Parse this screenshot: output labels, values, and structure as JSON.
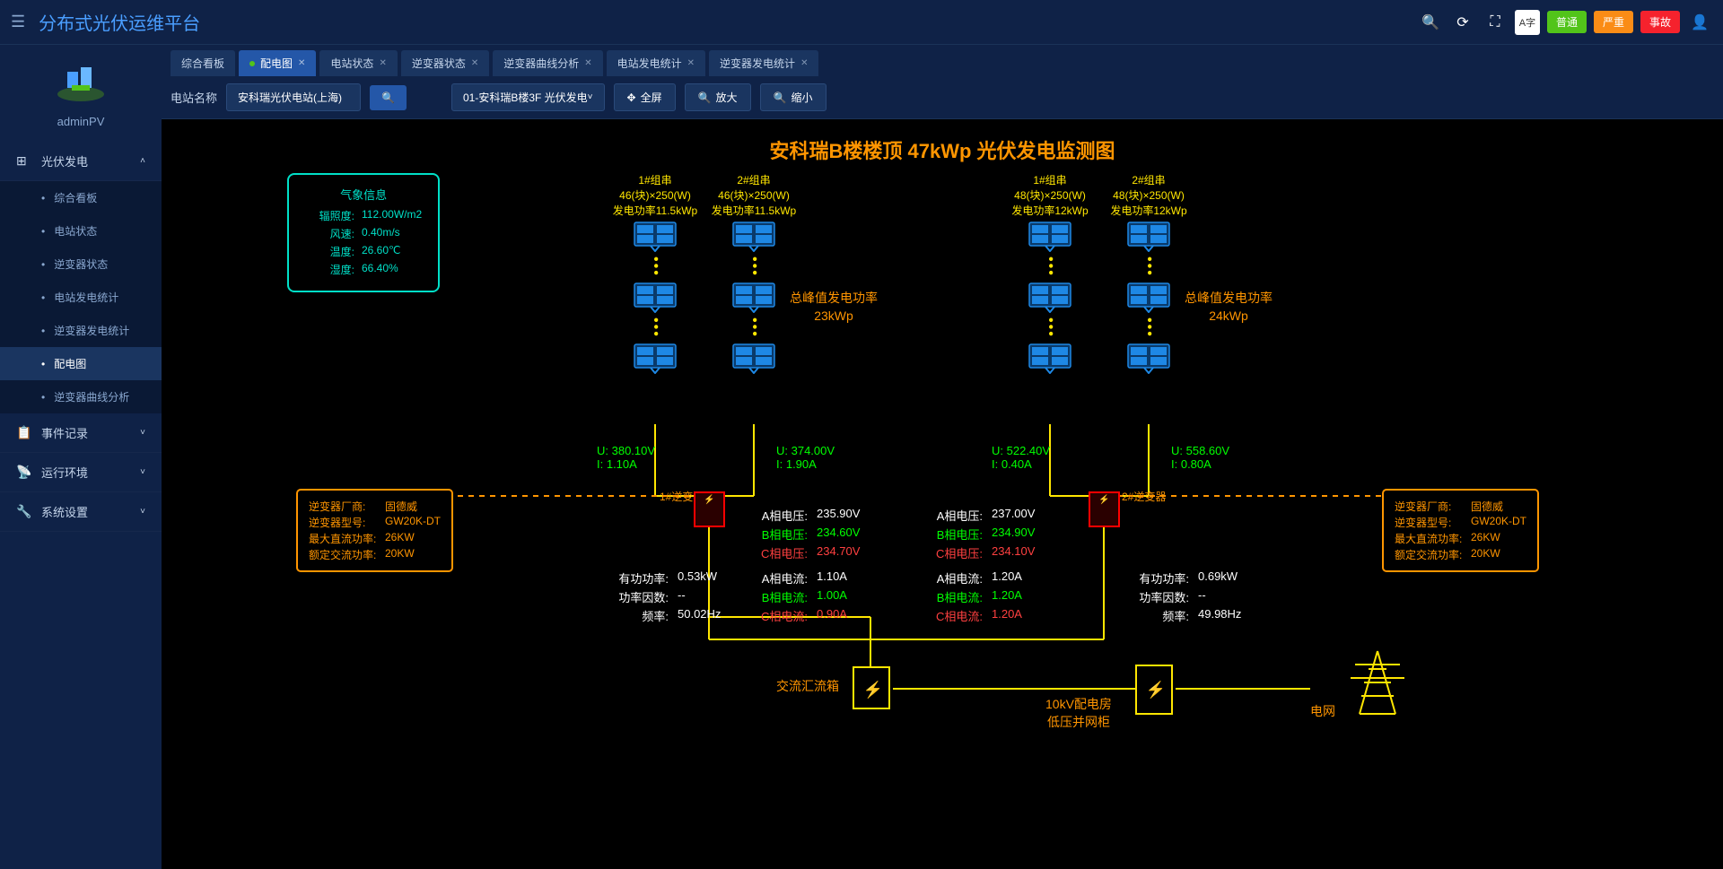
{
  "header": {
    "title": "分布式光伏运维平台",
    "badges": {
      "normal": "普通",
      "severe": "严重",
      "accident": "事故"
    }
  },
  "sidebar": {
    "user": "adminPV",
    "nav": {
      "pv": "光伏发电",
      "pv_items": [
        "综合看板",
        "电站状态",
        "逆变器状态",
        "电站发电统计",
        "逆变器发电统计",
        "配电图",
        "逆变器曲线分析"
      ],
      "events": "事件记录",
      "env": "运行环境",
      "settings": "系统设置"
    }
  },
  "tabs": [
    "综合看板",
    "配电图",
    "电站状态",
    "逆变器状态",
    "逆变器曲线分析",
    "电站发电统计",
    "逆变器发电统计"
  ],
  "active_tab": "配电图",
  "toolbar": {
    "station_label": "电站名称",
    "station_value": "安科瑞光伏电站(上海)",
    "device_value": "01-安科瑞B楼3F 光伏发电",
    "fullscreen": "全屏",
    "zoom_in": "放大",
    "zoom_out": "缩小"
  },
  "diagram": {
    "title": "安科瑞B楼楼顶 47kWp 光伏发电监测图",
    "colors": {
      "accent": "#ffe600",
      "orange": "#ff9500",
      "cyan": "#00e0c8",
      "green": "#00ff00",
      "red": "#ff4040",
      "panel": "#1e88e5"
    },
    "weather": {
      "title": "气象信息",
      "rows": [
        {
          "label": "辐照度:",
          "value": "112.00W/m2"
        },
        {
          "label": "风速:",
          "value": "0.40m/s"
        },
        {
          "label": "温度:",
          "value": "26.60℃"
        },
        {
          "label": "湿度:",
          "value": "66.40%"
        }
      ]
    },
    "strings": [
      {
        "id": "1#组串",
        "spec": "46(块)×250(W)",
        "power": "发电功率11.5kWp"
      },
      {
        "id": "2#组串",
        "spec": "46(块)×250(W)",
        "power": "发电功率11.5kWp"
      },
      {
        "id": "1#组串",
        "spec": "48(块)×250(W)",
        "power": "发电功率12kWp"
      },
      {
        "id": "2#组串",
        "spec": "48(块)×250(W)",
        "power": "发电功率12kWp"
      }
    ],
    "peak": [
      {
        "label": "总峰值发电功率",
        "value": "23kWp"
      },
      {
        "label": "总峰值发电功率",
        "value": "24kWp"
      }
    ],
    "ui": [
      {
        "u": "U: 380.10V",
        "i": "I: 1.10A"
      },
      {
        "u": "U: 374.00V",
        "i": "I: 1.90A"
      },
      {
        "u": "U: 522.40V",
        "i": "I: 0.40A"
      },
      {
        "u": "U: 558.60V",
        "i": "I: 0.80A"
      }
    ],
    "inverter_names": [
      "1#逆变器",
      "2#逆变器"
    ],
    "inverter_info": {
      "rows": [
        {
          "label": "逆变器厂商:",
          "value": "固德威"
        },
        {
          "label": "逆变器型号:",
          "value": "GW20K-DT"
        },
        {
          "label": "最大直流功率:",
          "value": "26KW"
        },
        {
          "label": "额定交流功率:",
          "value": "20KW"
        }
      ]
    },
    "power_params": [
      {
        "rows": [
          [
            "有功功率:",
            "0.53kW"
          ],
          [
            "功率因数:",
            "--"
          ],
          [
            "频率:",
            "50.02Hz"
          ]
        ]
      },
      {
        "rows": [
          [
            "有功功率:",
            "0.69kW"
          ],
          [
            "功率因数:",
            "--"
          ],
          [
            "频率:",
            "49.98Hz"
          ]
        ]
      }
    ],
    "phase_v": [
      [
        [
          "A相电压:",
          "235.90V",
          "c-white"
        ],
        [
          "B相电压:",
          "234.60V",
          "c-green"
        ],
        [
          "C相电压:",
          "234.70V",
          "c-red"
        ]
      ],
      [
        [
          "A相电压:",
          "237.00V",
          "c-white"
        ],
        [
          "B相电压:",
          "234.90V",
          "c-green"
        ],
        [
          "C相电压:",
          "234.10V",
          "c-red"
        ]
      ]
    ],
    "phase_i": [
      [
        [
          "A相电流:",
          "1.10A",
          "c-white"
        ],
        [
          "B相电流:",
          "1.00A",
          "c-green"
        ],
        [
          "C相电流:",
          "0.90A",
          "c-red"
        ]
      ],
      [
        [
          "A相电流:",
          "1.20A",
          "c-white"
        ],
        [
          "B相电流:",
          "1.20A",
          "c-green"
        ],
        [
          "C相电流:",
          "1.20A",
          "c-red"
        ]
      ]
    ],
    "junction": "交流汇流箱",
    "cabinet": [
      "10kV配电房",
      "低压并网柜"
    ],
    "grid": "电网"
  }
}
